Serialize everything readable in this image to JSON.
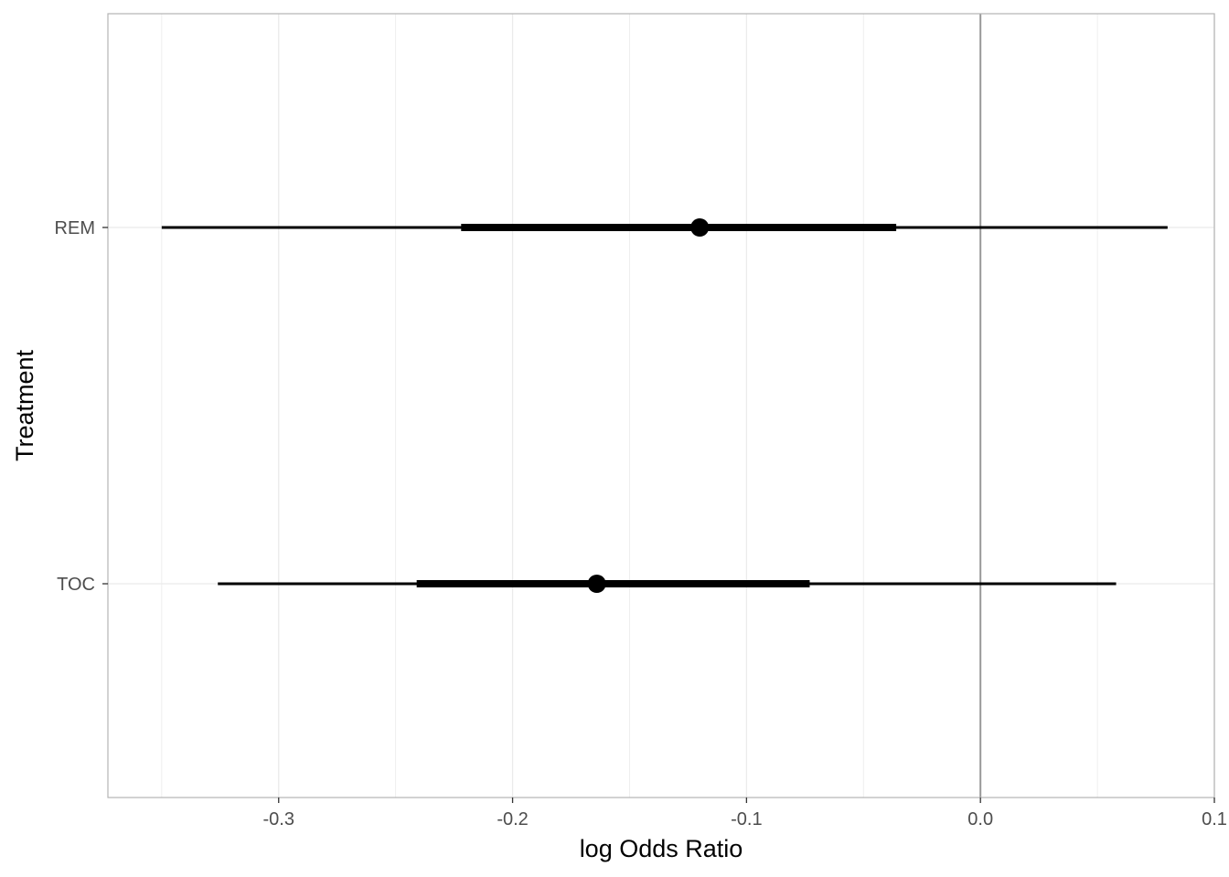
{
  "chart_data": {
    "type": "interval",
    "title": "",
    "xlabel": "log Odds Ratio",
    "ylabel": "Treatment",
    "xlim": [
      -0.373,
      0.1
    ],
    "x_ticks": [
      {
        "value": -0.3,
        "label": "-0.3"
      },
      {
        "value": -0.2,
        "label": "-0.2"
      },
      {
        "value": -0.1,
        "label": "-0.1"
      },
      {
        "value": 0.0,
        "label": "0.0"
      },
      {
        "value": 0.1,
        "label": "0.1"
      }
    ],
    "x_minor_ticks": [
      -0.35,
      -0.25,
      -0.15,
      -0.05,
      0.05
    ],
    "categories": [
      "REM",
      "TOC"
    ],
    "reference_line": {
      "x": 0.0,
      "color": "#999999"
    },
    "grid": true,
    "series": [
      {
        "category": "REM",
        "estimate": -0.12,
        "inner_interval": [
          -0.222,
          -0.036
        ],
        "outer_interval": [
          -0.35,
          0.08
        ]
      },
      {
        "category": "TOC",
        "estimate": -0.164,
        "inner_interval": [
          -0.241,
          -0.073
        ],
        "outer_interval": [
          -0.326,
          0.058
        ]
      }
    ],
    "colors": {
      "marks": "#000000",
      "grid": "#ebebeb",
      "panel_border": "#b3b3b3"
    }
  }
}
